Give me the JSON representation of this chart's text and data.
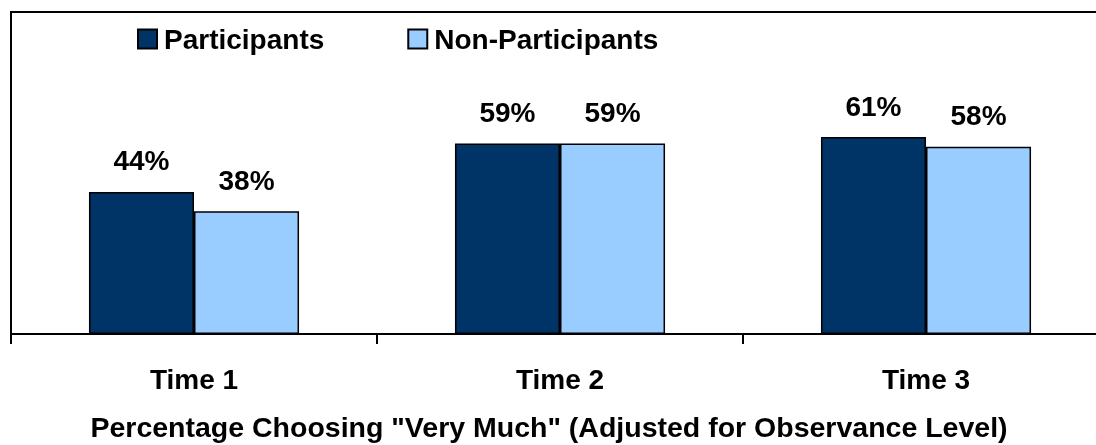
{
  "chart_data": {
    "type": "bar",
    "categories": [
      "Time 1",
      "Time 2",
      "Time 3"
    ],
    "xlabel": "Percentage Choosing \"Very Much\" (Adjusted for Observance Level)",
    "series": [
      {
        "name": "Participants",
        "color": "#003366",
        "values": [
          44,
          59,
          61
        ],
        "value_labels": [
          "44%",
          "59%",
          "61%"
        ]
      },
      {
        "name": "Non-Participants",
        "color": "#99ccff",
        "values": [
          38,
          59,
          58
        ],
        "value_labels": [
          "38%",
          "59%",
          "58%"
        ]
      }
    ],
    "legend": "top left",
    "tick_labels": "x"
  }
}
